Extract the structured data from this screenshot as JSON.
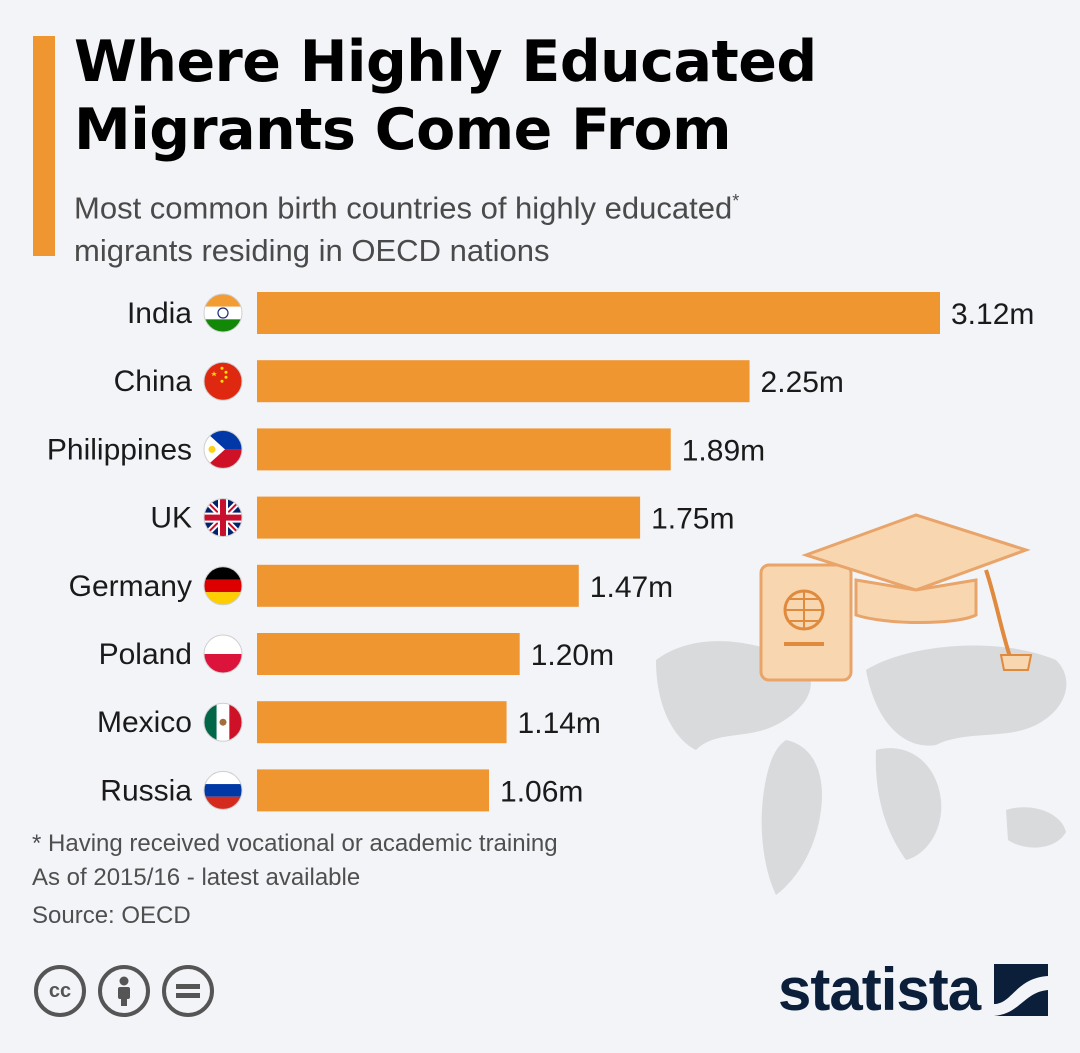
{
  "header": {
    "title_line1": "Where Highly Educated",
    "title_line2": "Migrants Come From",
    "subtitle_line1": "Most common birth countries of highly educated",
    "subtitle_asterisk": "*",
    "subtitle_line2": "migrants residing in OECD nations"
  },
  "chart_data": {
    "type": "bar",
    "orientation": "horizontal",
    "categories": [
      "India",
      "China",
      "Philippines",
      "UK",
      "Germany",
      "Poland",
      "Mexico",
      "Russia"
    ],
    "values": [
      3.12,
      2.25,
      1.89,
      1.75,
      1.47,
      1.2,
      1.14,
      1.06
    ],
    "value_labels": [
      "3.12m",
      "2.25m",
      "1.89m",
      "1.75m",
      "1.47m",
      "1.20m",
      "1.14m",
      "1.06m"
    ],
    "flags": [
      "india-flag",
      "china-flag",
      "philippines-flag",
      "uk-flag",
      "germany-flag",
      "poland-flag",
      "mexico-flag",
      "russia-flag"
    ],
    "bar_color": "#ef9630",
    "grid": false
  },
  "footer": {
    "note1": "* Having received vocational or academic training",
    "note2": "As of 2015/16 - latest available",
    "source": "Source: OECD",
    "brand": "statista"
  },
  "icons": [
    "cc-icon",
    "attribution-icon",
    "no-derivatives-icon",
    "statista-logo-icon",
    "world-map-icon",
    "passport-icon",
    "graduation-cap-icon"
  ],
  "colors": {
    "accent": "#ef9630",
    "brand": "#0b1f3a",
    "background": "#f3f4f8"
  }
}
